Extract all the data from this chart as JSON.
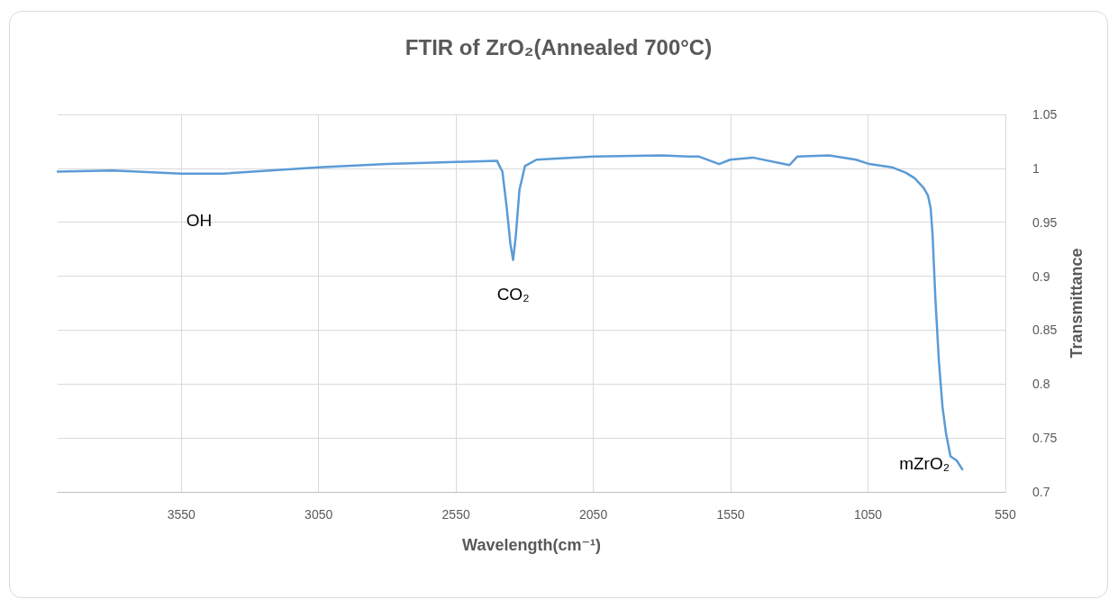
{
  "chart_data": {
    "type": "line",
    "title": "FTIR of ZrO₂(Annealed 700°C)",
    "xlabel": "Wavelength(cm⁻¹)",
    "ylabel": "Transmittance",
    "xlim": [
      4000,
      550
    ],
    "xticks": [
      3550,
      3050,
      2550,
      2050,
      1550,
      1050,
      550
    ],
    "ylim": [
      0.7,
      1.05
    ],
    "yticks": [
      0.7,
      0.75,
      0.8,
      0.85,
      0.9,
      0.95,
      1,
      1.05
    ],
    "grid": true,
    "marker": "none",
    "line_style": "solid",
    "annotations": [
      "OH",
      {
        "text": "CO₂",
        "x": 2342,
        "y": 0.915
      },
      {
        "text": "mZrO₂",
        "x": 707,
        "y": 0.721
      }
    ],
    "series": [
      {
        "color": "#5b9bd5",
        "x": [
          4000,
          3800,
          3550,
          3400,
          3050,
          2800,
          2550,
          2400,
          2397,
          2381,
          2365,
          2352,
          2342,
          2332,
          2319,
          2299,
          2257,
          2050,
          1800,
          1700,
          1667,
          1592,
          1552,
          1470,
          1336,
          1307,
          1192,
          1094,
          1045,
          963,
          913,
          881,
          848,
          832,
          822,
          815,
          805,
          792,
          779,
          766,
          750,
          727,
          707
        ],
        "values": [
          0.997,
          0.998,
          0.995,
          0.995,
          1.001,
          1.004,
          1.006,
          1.007,
          1.005,
          0.997,
          0.963,
          0.93,
          0.915,
          0.938,
          0.98,
          1.002,
          1.008,
          1.011,
          1.012,
          1.011,
          1.011,
          1.004,
          1.008,
          1.01,
          1.003,
          1.011,
          1.012,
          1.008,
          1.004,
          1.001,
          0.996,
          0.991,
          0.982,
          0.975,
          0.963,
          0.938,
          0.88,
          0.821,
          0.779,
          0.754,
          0.733,
          0.729,
          0.721
        ]
      }
    ]
  }
}
